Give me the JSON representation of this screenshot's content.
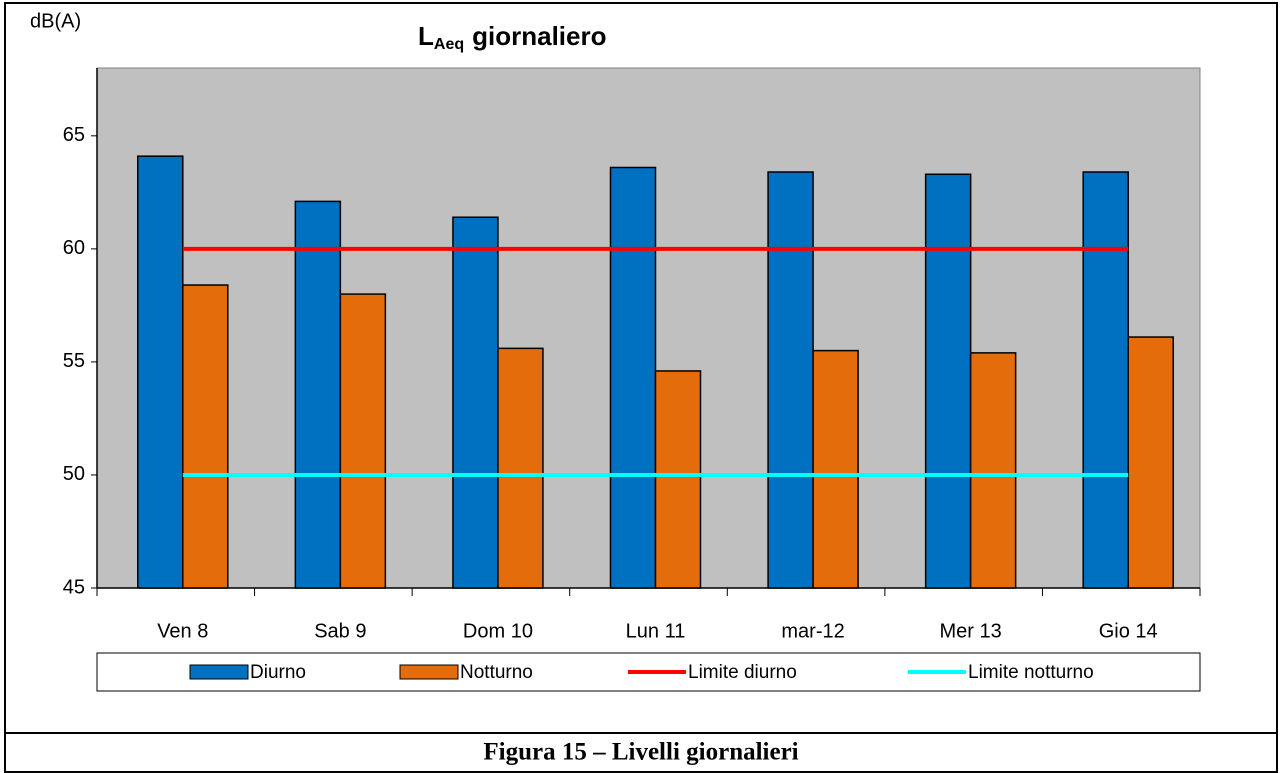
{
  "chart_data": {
    "type": "bar",
    "title_parts": [
      "L",
      "Aeq",
      "giornaliero"
    ],
    "y_label": "dB(A)",
    "categories": [
      "Ven 8",
      "Sab 9",
      "Dom 10",
      "Lun 11",
      "mar-12",
      "Mer 13",
      "Gio 14"
    ],
    "series": [
      {
        "name": "Diurno",
        "kind": "bar",
        "color": "#0070c0",
        "values": [
          64.1,
          62.1,
          61.4,
          63.6,
          63.4,
          63.3,
          63.4
        ]
      },
      {
        "name": "Notturno",
        "kind": "bar",
        "color": "#e46c0a",
        "values": [
          58.4,
          58.0,
          55.6,
          54.6,
          55.5,
          55.4,
          56.1
        ]
      },
      {
        "name": "Limite diurno",
        "kind": "line",
        "color": "#ff0000",
        "values": [
          60,
          60,
          60,
          60,
          60,
          60,
          60
        ]
      },
      {
        "name": "Limite notturno",
        "kind": "line",
        "color": "#00ffff",
        "values": [
          50,
          50,
          50,
          50,
          50,
          50,
          50
        ]
      }
    ],
    "ylim": [
      45,
      68
    ],
    "yticks": [
      45,
      50,
      55,
      60,
      65
    ],
    "legend": "bottom",
    "caption": "Figura 15 – Livelli  giornalieri"
  }
}
